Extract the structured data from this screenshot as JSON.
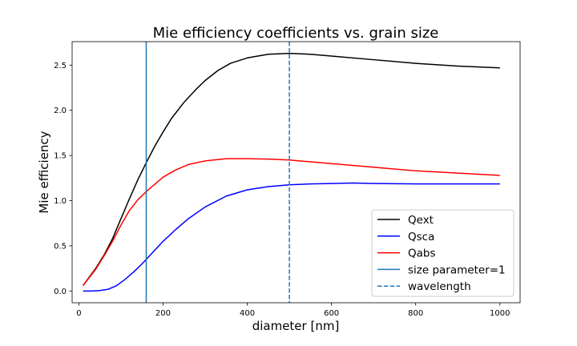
{
  "chart_data": {
    "type": "line",
    "title": "Mie efficiency coefficients vs. grain size",
    "xlabel": "diameter [nm]",
    "ylabel": "Mie efficiency",
    "xlim": [
      -16,
      1048
    ],
    "ylim": [
      -0.13,
      2.76
    ],
    "xticks": [
      0,
      200,
      400,
      600,
      800,
      1000
    ],
    "xtick_labels": [
      "0",
      "200",
      "400",
      "600",
      "800",
      "1000"
    ],
    "yticks": [
      0.0,
      0.5,
      1.0,
      1.5,
      2.0,
      2.5
    ],
    "ytick_labels": [
      "0.0",
      "0.5",
      "1.0",
      "1.5",
      "2.0",
      "2.5"
    ],
    "grid": false,
    "legend_placement": "lower-right",
    "series": [
      {
        "name": "Qext",
        "color": "#000000",
        "style": "solid",
        "x": [
          10,
          40,
          60,
          80,
          100,
          120,
          140,
          160,
          180,
          200,
          220,
          250,
          280,
          300,
          330,
          360,
          400,
          450,
          500,
          550,
          600,
          700,
          800,
          900,
          1000
        ],
        "y": [
          0.06,
          0.25,
          0.4,
          0.58,
          0.8,
          1.02,
          1.23,
          1.42,
          1.6,
          1.76,
          1.91,
          2.09,
          2.24,
          2.33,
          2.44,
          2.52,
          2.58,
          2.62,
          2.63,
          2.62,
          2.6,
          2.56,
          2.52,
          2.49,
          2.47
        ]
      },
      {
        "name": "Qsca",
        "color": "#0000ff",
        "style": "solid",
        "x": [
          10,
          30,
          50,
          70,
          90,
          110,
          130,
          150,
          170,
          200,
          230,
          260,
          300,
          350,
          400,
          450,
          500,
          550,
          600,
          650,
          700,
          800,
          900,
          1000
        ],
        "y": [
          0.0,
          0.0,
          0.005,
          0.02,
          0.06,
          0.13,
          0.21,
          0.3,
          0.4,
          0.55,
          0.68,
          0.8,
          0.93,
          1.05,
          1.12,
          1.155,
          1.175,
          1.185,
          1.19,
          1.195,
          1.19,
          1.185,
          1.185,
          1.185
        ]
      },
      {
        "name": "Qabs",
        "color": "#ff0000",
        "style": "solid",
        "x": [
          10,
          40,
          60,
          80,
          100,
          120,
          140,
          160,
          180,
          200,
          230,
          260,
          300,
          350,
          400,
          450,
          500,
          550,
          600,
          700,
          800,
          900,
          1000
        ],
        "y": [
          0.06,
          0.24,
          0.39,
          0.55,
          0.73,
          0.89,
          1.01,
          1.1,
          1.18,
          1.26,
          1.34,
          1.4,
          1.44,
          1.465,
          1.465,
          1.46,
          1.45,
          1.43,
          1.41,
          1.37,
          1.33,
          1.305,
          1.28
        ]
      }
    ],
    "vlines": [
      {
        "name": "size parameter=1",
        "x": 160,
        "color": "#1f77b4",
        "style": "solid"
      },
      {
        "name": "wavelength",
        "x": 500,
        "color": "#1f77b4",
        "style": "dashed"
      }
    ],
    "legend": [
      "Qext",
      "Qsca",
      "Qabs",
      "size parameter=1",
      "wavelength"
    ]
  }
}
